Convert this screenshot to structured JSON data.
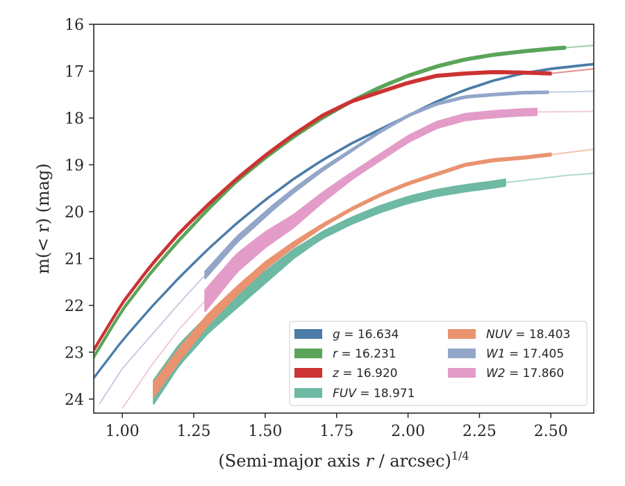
{
  "chart_data": {
    "type": "line",
    "xlabel": "(Semi-major axis r / arcsec)",
    "xlabel_italic": "r",
    "xlabel_superscript": "1/4",
    "ylabel": "m(< r) (mag)",
    "xlim": [
      0.9,
      2.65
    ],
    "ylim": [
      24.3,
      16.0
    ],
    "y_inverted": true,
    "xticks": [
      "1.00",
      "1.25",
      "1.50",
      "1.75",
      "2.00",
      "2.25",
      "2.50"
    ],
    "xtick_values": [
      1.0,
      1.25,
      1.5,
      1.75,
      2.0,
      2.25,
      2.5
    ],
    "yticks": [
      "16",
      "17",
      "18",
      "19",
      "20",
      "21",
      "22",
      "23",
      "24"
    ],
    "ytick_values": [
      16,
      17,
      18,
      19,
      20,
      21,
      22,
      23,
      24
    ],
    "grid": false,
    "legend_position": "bottom-right",
    "series": [
      {
        "name": "g = 16.634",
        "band": "g",
        "value": "16.634",
        "color": "#4c7ca8",
        "x": [
          0.9,
          1.0,
          1.1,
          1.2,
          1.3,
          1.4,
          1.5,
          1.6,
          1.7,
          1.8,
          1.9,
          2.0,
          2.1,
          2.2,
          2.3,
          2.4,
          2.5,
          2.65
        ],
        "y": [
          23.55,
          22.75,
          22.05,
          21.4,
          20.8,
          20.25,
          19.75,
          19.3,
          18.9,
          18.55,
          18.25,
          17.95,
          17.65,
          17.4,
          17.2,
          17.05,
          16.95,
          16.85
        ],
        "obs_end": 2.65,
        "band_width": 0.02
      },
      {
        "name": "r = 16.231",
        "band": "r",
        "value": "16.231",
        "color": "#5aa55a",
        "x": [
          0.9,
          1.0,
          1.1,
          1.2,
          1.3,
          1.4,
          1.5,
          1.6,
          1.7,
          1.8,
          1.9,
          2.0,
          2.1,
          2.2,
          2.3,
          2.4,
          2.5,
          2.55,
          2.65
        ],
        "y": [
          23.1,
          22.1,
          21.3,
          20.6,
          19.95,
          19.35,
          18.85,
          18.4,
          18.0,
          17.65,
          17.35,
          17.1,
          16.9,
          16.75,
          16.65,
          16.58,
          16.52,
          16.5,
          16.45
        ],
        "obs_end": 2.55,
        "band_width": 0.05
      },
      {
        "name": "z = 16.920",
        "band": "z",
        "value": "16.920",
        "color": "#cc3333",
        "x": [
          0.9,
          1.0,
          1.1,
          1.2,
          1.3,
          1.4,
          1.5,
          1.6,
          1.7,
          1.8,
          1.9,
          2.0,
          2.1,
          2.2,
          2.3,
          2.4,
          2.5,
          2.65
        ],
        "y": [
          22.95,
          21.95,
          21.15,
          20.45,
          19.85,
          19.3,
          18.8,
          18.35,
          17.95,
          17.65,
          17.45,
          17.25,
          17.1,
          17.05,
          17.02,
          17.03,
          17.05,
          16.95
        ],
        "obs_end": 2.5,
        "band_width": 0.05
      },
      {
        "name": "FUV = 18.971",
        "band": "FUV",
        "value": "18.971",
        "color": "#6db9a3",
        "x": [
          1.11,
          1.2,
          1.3,
          1.4,
          1.5,
          1.6,
          1.7,
          1.8,
          1.9,
          2.0,
          2.1,
          2.2,
          2.3,
          2.34,
          2.45,
          2.55,
          2.65
        ],
        "y": [
          23.85,
          23.05,
          22.4,
          21.9,
          21.4,
          20.9,
          20.5,
          20.2,
          19.95,
          19.75,
          19.6,
          19.5,
          19.42,
          19.38,
          19.3,
          19.23,
          19.18
        ],
        "obs_start": 1.11,
        "obs_end": 2.34,
        "band_width": 0.14,
        "band_width_start": 0.5
      },
      {
        "name": "NUV = 18.403",
        "band": "NUV",
        "value": "18.403",
        "color": "#ea9370",
        "x": [
          1.11,
          1.2,
          1.3,
          1.4,
          1.5,
          1.6,
          1.7,
          1.8,
          1.9,
          2.0,
          2.1,
          2.2,
          2.3,
          2.4,
          2.5,
          2.65
        ],
        "y": [
          23.8,
          23.05,
          22.3,
          21.7,
          21.15,
          20.7,
          20.3,
          19.95,
          19.65,
          19.4,
          19.2,
          19.0,
          18.9,
          18.85,
          18.78,
          18.67
        ],
        "obs_start": 1.11,
        "obs_end": 2.5,
        "band_width": 0.05,
        "band_width_start": 0.3
      },
      {
        "name": "W1 = 17.405",
        "band": "W1",
        "value": "17.405",
        "color": "#93a6c9",
        "x": [
          0.92,
          1.0,
          1.1,
          1.2,
          1.29,
          1.4,
          1.53,
          1.6,
          1.7,
          1.8,
          1.9,
          2.0,
          2.1,
          2.2,
          2.3,
          2.4,
          2.5,
          2.65
        ],
        "y": [
          24.1,
          23.35,
          22.65,
          21.95,
          21.35,
          20.6,
          19.9,
          19.55,
          19.1,
          18.7,
          18.3,
          17.95,
          17.7,
          17.55,
          17.5,
          17.46,
          17.45,
          17.43
        ],
        "obs_start": 1.29,
        "obs_end": 2.49,
        "band_width": 0.04,
        "band_width_start": 0.15
      },
      {
        "name": "W2 = 17.860",
        "band": "W2",
        "value": "17.860",
        "color": "#e39cc8",
        "x": [
          1.0,
          1.1,
          1.2,
          1.29,
          1.4,
          1.5,
          1.6,
          1.7,
          1.8,
          1.9,
          2.0,
          2.1,
          2.2,
          2.3,
          2.4,
          2.45,
          2.65
        ],
        "y": [
          24.2,
          23.3,
          22.5,
          21.9,
          21.1,
          20.6,
          20.2,
          19.7,
          19.25,
          18.85,
          18.45,
          18.15,
          17.98,
          17.92,
          17.88,
          17.87,
          17.86
        ],
        "obs_start": 1.29,
        "obs_end": 2.45,
        "band_width": 0.14,
        "band_width_start": 0.45
      }
    ],
    "legend_order": [
      0,
      4,
      1,
      5,
      2,
      6,
      3
    ]
  }
}
